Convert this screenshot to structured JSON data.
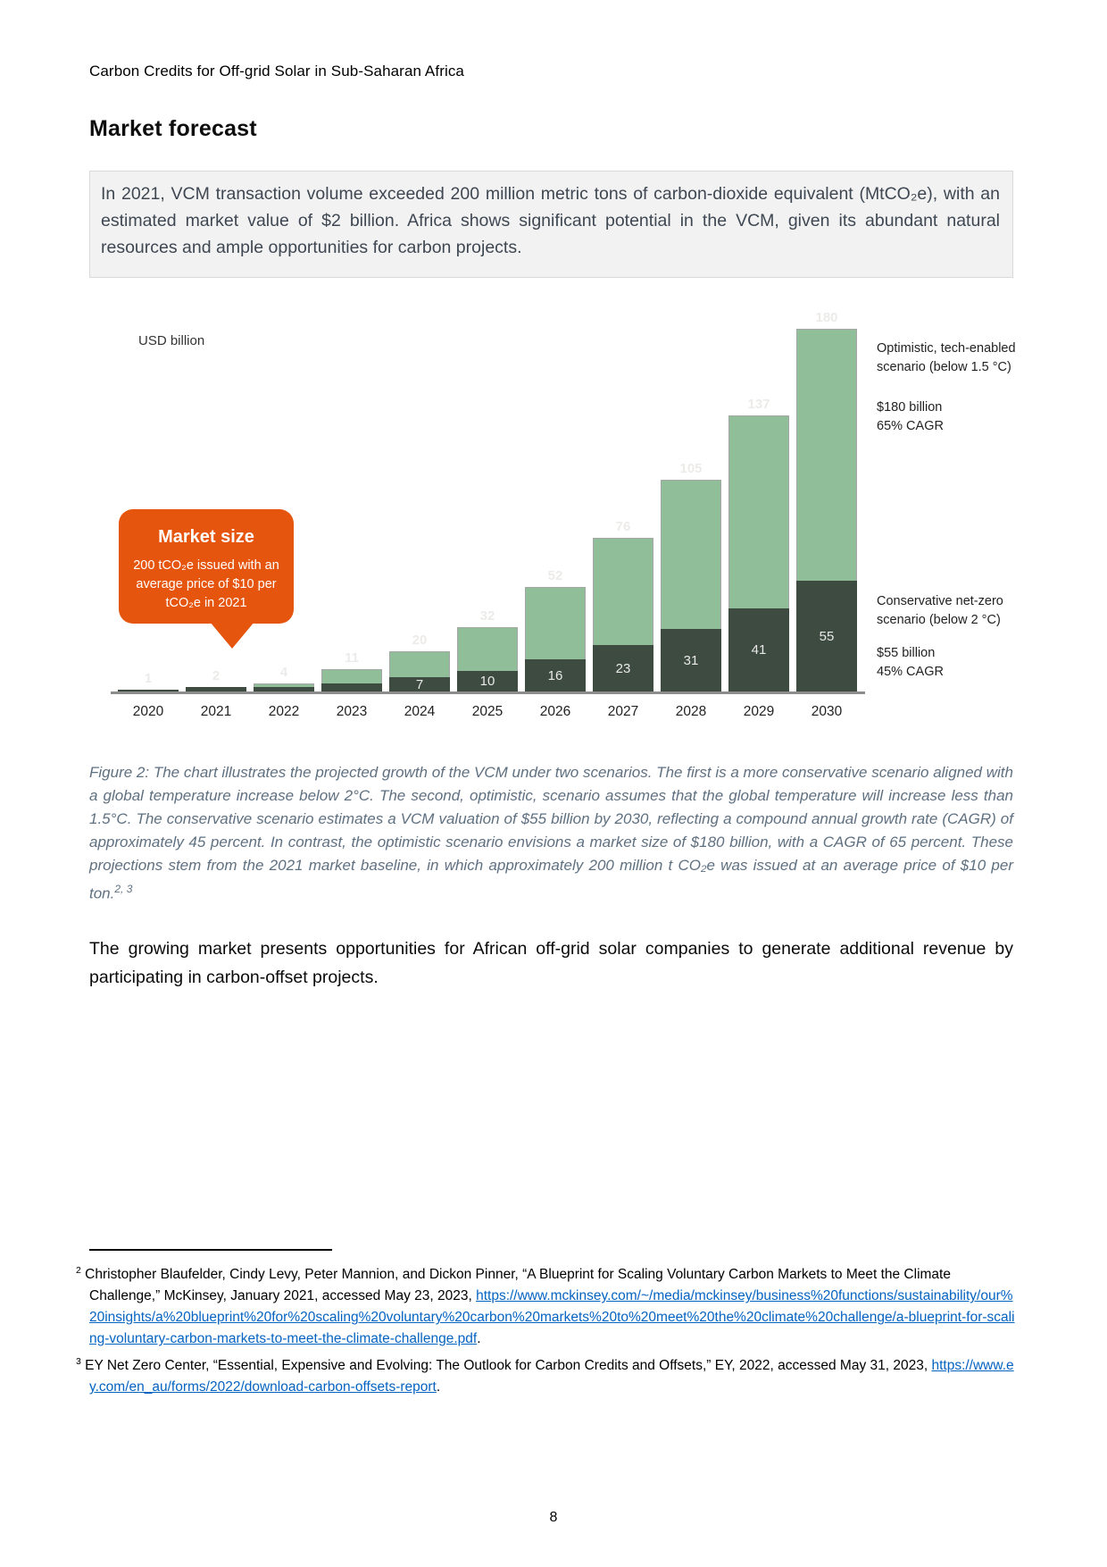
{
  "page": {
    "header": "Carbon Credits for Off-grid Solar in Sub-Saharan Africa",
    "title": "Market forecast",
    "page_number": "8"
  },
  "highlight_box": {
    "text": "In 2021, VCM transaction volume exceeded 200 million metric tons of carbon-dioxide equivalent (MtCO₂e), with an estimated market value of $2 billion. Africa shows significant potential in the VCM, given its abundant natural resources and ample opportunities for carbon projects."
  },
  "chart_data": {
    "type": "bar",
    "stacked": true,
    "title": "",
    "unit_label": "USD billion",
    "xlabel": "",
    "ylabel": "USD billion",
    "ylim": [
      0,
      200
    ],
    "grid": false,
    "legend_position": "right",
    "categories": [
      "2020",
      "2021",
      "2022",
      "2023",
      "2024",
      "2025",
      "2026",
      "2027",
      "2028",
      "2029",
      "2030"
    ],
    "series": [
      {
        "name": "Conservative net-zero scenario (below 2 °C)",
        "color": "#3d4b40",
        "values": [
          1,
          2,
          2,
          4,
          7,
          10,
          16,
          23,
          31,
          41,
          55
        ],
        "labels": [
          null,
          null,
          null,
          null,
          "7",
          "10",
          "16",
          "23",
          "31",
          "41",
          "55"
        ]
      },
      {
        "name": "Optimistic, tech-enabled scenario (below 1.5 °C) — total bar height",
        "color": "#8fbe98",
        "values": [
          1,
          2,
          4,
          11,
          20,
          32,
          52,
          76,
          105,
          137,
          180
        ],
        "labels": [
          "1",
          "2",
          "4",
          "11",
          "20",
          "32",
          "52",
          "76",
          "105",
          "137",
          "180"
        ]
      }
    ]
  },
  "callout": {
    "title": "Market size",
    "body": "200 tCO₂e issued with an average price of $10 per tCO₂e in 2021"
  },
  "legend": {
    "optimistic_label": "Optimistic, tech-enabled scenario (below 1.5 °C)",
    "optimistic_value": "$180 billion",
    "optimistic_cagr": "65% CAGR",
    "conservative_label": "Conservative net-zero scenario (below 2 °C)",
    "conservative_value": "$55 billion",
    "conservative_cagr": "45% CAGR"
  },
  "caption": {
    "text": "Figure 2: The chart illustrates the projected growth of the VCM under two scenarios. The first is a more conservative scenario aligned with a global temperature increase below 2°C. The second, optimistic, scenario assumes that the global temperature will increase less than 1.5°C. The conservative scenario estimates a VCM valuation of $55 billion by 2030, reflecting a compound annual growth rate (CAGR) of approximately 45 percent. In contrast, the optimistic scenario envisions a market size of $180 billion, with a CAGR of 65 percent. These projections stem from the 2021 market baseline, in which approximately 200 million t CO₂e was issued at an average price of $10 per ton.",
    "sup": "2, 3"
  },
  "paragraph": "The growing market presents opportunities for African off-grid solar companies to generate additional revenue by participating in carbon-offset projects.",
  "footnotes": [
    {
      "marker": "2",
      "text": "Christopher Blaufelder, Cindy Levy, Peter Mannion, and Dickon Pinner, “A Blueprint for Scaling Voluntary Carbon Markets to Meet the Climate Challenge,” McKinsey, January 2021, accessed May 23, 2023, ",
      "link": "https://www.mckinsey.com/~/media/mckinsey/business%20functions/sustainability/our%20insights/a%20blueprint%20for%20scaling%20voluntary%20carbon%20markets%20to%20meet%20the%20climate%20challenge/a-blueprint-for-scaling-voluntary-carbon-markets-to-meet-the-climate-challenge.pdf",
      "tail": "."
    },
    {
      "marker": "3",
      "text": "EY Net Zero Center, “Essential, Expensive and Evolving: The Outlook for Carbon Credits and Offsets,” EY, 2022, accessed May 31, 2023, ",
      "link": "https://www.ey.com/en_au/forms/2022/download-carbon-offsets-report",
      "tail": "."
    }
  ]
}
